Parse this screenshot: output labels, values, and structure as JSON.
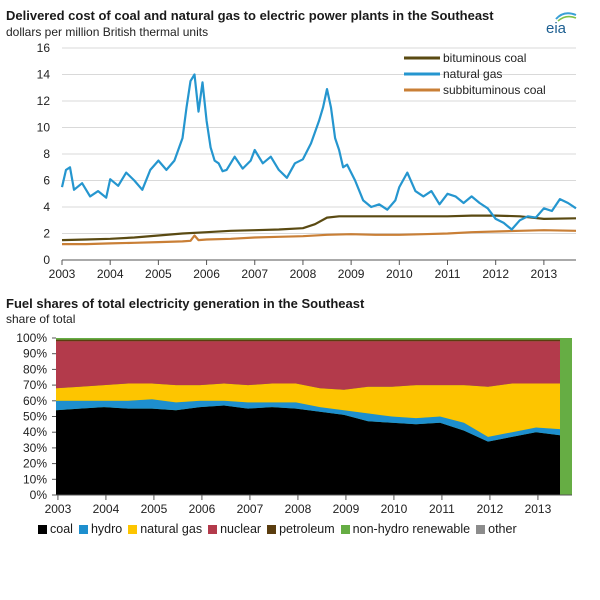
{
  "top": {
    "title": "Delivered cost of coal and natural gas to electric power plants in the Southeast",
    "subtitle": "dollars per million British thermal units",
    "logo_text": "eia"
  },
  "bottom": {
    "title": "Fuel shares of total electricity generation in the Southeast",
    "subtitle": "share of total"
  },
  "chart_data": [
    {
      "type": "line",
      "title": "Delivered cost of coal and natural gas to electric power plants in the Southeast",
      "ylabel": "dollars per million British thermal units",
      "ylim": [
        0,
        16
      ],
      "yticks": [
        0,
        2,
        4,
        6,
        8,
        10,
        12,
        14,
        16
      ],
      "xlim": [
        "2003-01",
        "2013-09"
      ],
      "xticks": [
        "2003",
        "2004",
        "2005",
        "2006",
        "2007",
        "2008",
        "2009",
        "2010",
        "2011",
        "2012",
        "2013"
      ],
      "grid": true,
      "legend": "top-right",
      "series": [
        {
          "name": "bituminous coal",
          "color": "#5a4a12",
          "x": [
            "2003-01",
            "2003-07",
            "2004-01",
            "2004-07",
            "2005-01",
            "2005-07",
            "2006-01",
            "2006-07",
            "2007-01",
            "2007-07",
            "2008-01",
            "2008-04",
            "2008-07",
            "2008-10",
            "2009-01",
            "2009-07",
            "2010-01",
            "2010-07",
            "2011-01",
            "2011-07",
            "2012-01",
            "2012-07",
            "2013-01",
            "2013-09"
          ],
          "values": [
            1.5,
            1.55,
            1.6,
            1.7,
            1.85,
            2.0,
            2.1,
            2.2,
            2.25,
            2.3,
            2.4,
            2.7,
            3.2,
            3.3,
            3.3,
            3.3,
            3.3,
            3.3,
            3.3,
            3.35,
            3.35,
            3.3,
            3.1,
            3.15
          ]
        },
        {
          "name": "natural gas",
          "color": "#2596cf",
          "x": [
            "2003-01",
            "2003-02",
            "2003-03",
            "2003-04",
            "2003-06",
            "2003-08",
            "2003-10",
            "2003-12",
            "2004-01",
            "2004-03",
            "2004-05",
            "2004-07",
            "2004-09",
            "2004-11",
            "2005-01",
            "2005-03",
            "2005-05",
            "2005-07",
            "2005-08",
            "2005-09",
            "2005-10",
            "2005-11",
            "2005-12",
            "2006-01",
            "2006-02",
            "2006-03",
            "2006-04",
            "2006-05",
            "2006-06",
            "2006-08",
            "2006-10",
            "2006-12",
            "2007-01",
            "2007-03",
            "2007-05",
            "2007-07",
            "2007-09",
            "2007-11",
            "2008-01",
            "2008-03",
            "2008-05",
            "2008-06",
            "2008-07",
            "2008-08",
            "2008-09",
            "2008-10",
            "2008-11",
            "2008-12",
            "2009-02",
            "2009-04",
            "2009-06",
            "2009-08",
            "2009-10",
            "2009-12",
            "2010-01",
            "2010-03",
            "2010-05",
            "2010-07",
            "2010-09",
            "2010-11",
            "2011-01",
            "2011-03",
            "2011-05",
            "2011-07",
            "2011-09",
            "2011-11",
            "2012-01",
            "2012-03",
            "2012-05",
            "2012-07",
            "2012-09",
            "2012-11",
            "2013-01",
            "2013-03",
            "2013-05",
            "2013-07",
            "2013-09"
          ],
          "values": [
            5.5,
            6.8,
            7.0,
            5.3,
            5.8,
            4.8,
            5.2,
            4.7,
            6.1,
            5.6,
            6.6,
            6.0,
            5.3,
            6.8,
            7.5,
            6.8,
            7.5,
            9.2,
            11.5,
            13.5,
            14.0,
            11.2,
            13.4,
            10.5,
            8.5,
            7.5,
            7.3,
            6.7,
            6.8,
            7.8,
            6.9,
            7.5,
            8.3,
            7.3,
            7.8,
            6.8,
            6.2,
            7.3,
            7.6,
            8.8,
            10.5,
            11.5,
            12.9,
            11.5,
            9.2,
            8.3,
            7.0,
            7.2,
            6.0,
            4.5,
            4.0,
            4.2,
            3.8,
            4.5,
            5.5,
            6.6,
            5.2,
            4.8,
            5.2,
            4.2,
            5.0,
            4.8,
            4.3,
            4.8,
            4.3,
            3.9,
            3.1,
            2.8,
            2.3,
            3.0,
            3.3,
            3.2,
            3.9,
            3.7,
            4.6,
            4.3,
            3.9
          ]
        },
        {
          "name": "subbituminous coal",
          "color": "#c97f36",
          "x": [
            "2003-01",
            "2003-07",
            "2004-01",
            "2004-07",
            "2005-01",
            "2005-07",
            "2005-09",
            "2005-10",
            "2005-11",
            "2006-01",
            "2006-07",
            "2007-01",
            "2007-07",
            "2008-01",
            "2008-07",
            "2009-01",
            "2009-07",
            "2010-01",
            "2010-07",
            "2011-01",
            "2011-07",
            "2012-01",
            "2012-07",
            "2013-01",
            "2013-09"
          ],
          "values": [
            1.2,
            1.2,
            1.25,
            1.3,
            1.35,
            1.4,
            1.45,
            1.85,
            1.5,
            1.55,
            1.6,
            1.7,
            1.75,
            1.8,
            1.9,
            1.95,
            1.9,
            1.9,
            1.95,
            2.0,
            2.1,
            2.15,
            2.2,
            2.25,
            2.2
          ]
        }
      ]
    },
    {
      "type": "area",
      "stacked": true,
      "title": "Fuel shares of total electricity generation in the Southeast",
      "ylabel": "share of total",
      "ylim": [
        0,
        100
      ],
      "yticks": [
        "0%",
        "10%",
        "20%",
        "30%",
        "40%",
        "50%",
        "60%",
        "70%",
        "80%",
        "90%",
        "100%"
      ],
      "xticks": [
        "2003",
        "2004",
        "2005",
        "2006",
        "2007",
        "2008",
        "2009",
        "2010",
        "2011",
        "2012",
        "2013"
      ],
      "legend": "bottom",
      "x": [
        "2003-01",
        "2003-07",
        "2004-01",
        "2004-07",
        "2005-01",
        "2005-07",
        "2006-01",
        "2006-07",
        "2007-01",
        "2007-07",
        "2008-01",
        "2008-07",
        "2009-01",
        "2009-07",
        "2010-01",
        "2010-07",
        "2011-01",
        "2011-07",
        "2012-01",
        "2012-07",
        "2013-01",
        "2013-07"
      ],
      "series": [
        {
          "name": "coal",
          "color": "#000000",
          "values": [
            54,
            55,
            56,
            55,
            55,
            54,
            56,
            57,
            55,
            56,
            55,
            53,
            51,
            47,
            46,
            45,
            46,
            41,
            34,
            37,
            40,
            38
          ]
        },
        {
          "name": "hydro",
          "color": "#1e8fce",
          "values": [
            6,
            5,
            4,
            5,
            6,
            5,
            4,
            3,
            4,
            3,
            4,
            3,
            3,
            5,
            4,
            4,
            4,
            5,
            3,
            3,
            3,
            4
          ]
        },
        {
          "name": "natural gas",
          "color": "#fdc500",
          "values": [
            8,
            9,
            10,
            11,
            10,
            11,
            10,
            11,
            11,
            12,
            12,
            12,
            13,
            17,
            19,
            21,
            20,
            24,
            32,
            31,
            28,
            29
          ]
        },
        {
          "name": "nuclear",
          "color": "#b33a4b",
          "values": [
            30,
            29,
            28,
            27,
            27,
            28,
            28,
            27,
            28,
            27,
            27,
            30,
            31,
            29,
            29,
            28,
            28,
            28,
            29,
            27,
            27,
            27
          ]
        },
        {
          "name": "petroleum",
          "color": "#5a3d0f",
          "values": [
            1,
            1,
            1,
            1,
            1,
            1,
            1,
            1,
            1,
            1,
            1,
            1,
            1,
            1,
            1,
            1,
            1,
            1,
            1,
            1,
            1,
            1
          ]
        },
        {
          "name": "non-hydro renewable",
          "color": "#66ad44",
          "values": [
            1,
            1,
            1,
            1,
            1,
            1,
            1,
            1,
            1,
            1,
            1,
            1,
            1,
            1,
            1,
            1,
            1,
            1,
            1,
            1,
            1,
            1
          ]
        },
        {
          "name": "other",
          "color": "#8c8c8c",
          "values": [
            0,
            0,
            0,
            0,
            0,
            0,
            0,
            0,
            0,
            0,
            0,
            0,
            0,
            0,
            0,
            0,
            0,
            0,
            0,
            0,
            0,
            0
          ]
        }
      ]
    }
  ]
}
